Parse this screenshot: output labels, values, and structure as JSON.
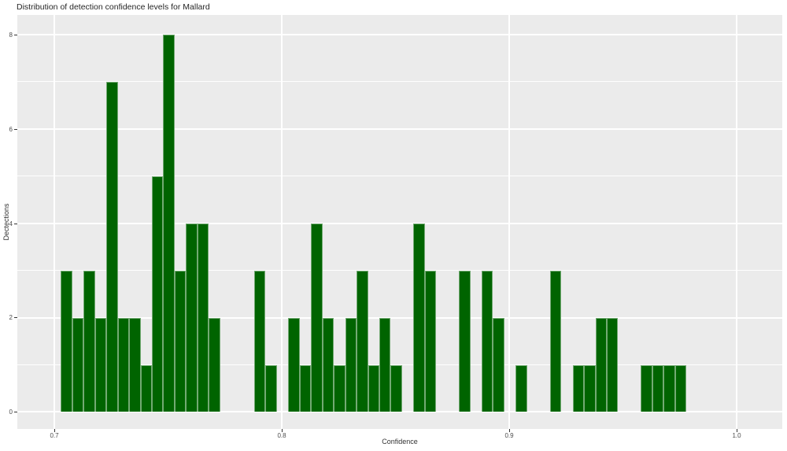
{
  "chart_data": {
    "type": "bar",
    "subtype": "histogram",
    "title": "Distribution of detection confidence levels for Mallard",
    "xlabel": "Confidence",
    "ylabel": "Dectections",
    "bin_start": 0.7029,
    "bin_width": 0.005,
    "counts": [
      3,
      2,
      3,
      2,
      7,
      2,
      2,
      1,
      5,
      8,
      3,
      4,
      4,
      2,
      0,
      0,
      0,
      3,
      1,
      0,
      2,
      1,
      4,
      2,
      1,
      2,
      3,
      1,
      2,
      1,
      0,
      4,
      3,
      0,
      0,
      3,
      0,
      3,
      2,
      0,
      1,
      0,
      0,
      3,
      0,
      1,
      1,
      2,
      2,
      0,
      0,
      1,
      1,
      1,
      1
    ],
    "total_detections": 100,
    "x_ticks": [
      {
        "value": 0.7,
        "label": "0.7"
      },
      {
        "value": 0.8,
        "label": "0.8"
      },
      {
        "value": 0.9,
        "label": "0.9"
      },
      {
        "value": 1.0,
        "label": "1.0"
      }
    ],
    "y_ticks": [
      {
        "value": 0,
        "label": "0"
      },
      {
        "value": 2,
        "label": "2"
      },
      {
        "value": 4,
        "label": "4"
      },
      {
        "value": 6,
        "label": "6"
      },
      {
        "value": 8,
        "label": "8"
      }
    ],
    "y_gridlines": [
      0,
      1,
      2,
      3,
      4,
      5,
      6,
      7,
      8
    ],
    "xlim": [
      0.6836,
      1.0202
    ],
    "ylim": [
      -0.36,
      8.42
    ],
    "grid": true,
    "legend_position": "none",
    "colors": {
      "bar": "#006400",
      "bar_edge": "rgba(255,255,255,0.45)",
      "panel_background": "#ebebeb",
      "gridline": "#ffffff",
      "tick_text": "#4d4d4d",
      "title_text": "#262626",
      "axis_label_text": "#333333"
    }
  }
}
